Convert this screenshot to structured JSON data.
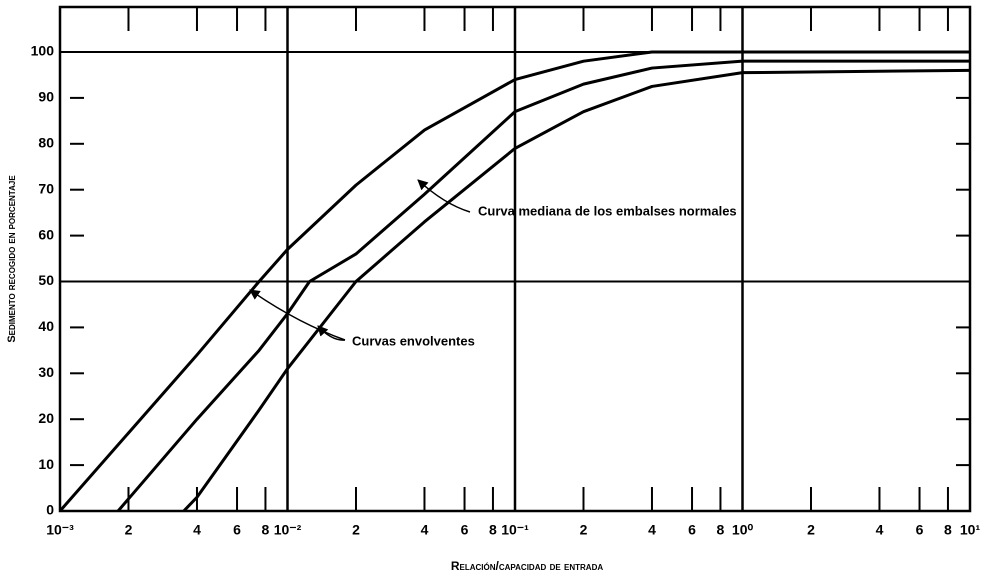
{
  "chart_data": {
    "type": "line",
    "xlabel": "Relación/capacidad de entrada",
    "ylabel": "Sedimento recogido en porcentaje",
    "xscale": "log",
    "xlim": [
      0.001,
      10
    ],
    "ylim": [
      0,
      100
    ],
    "xticks": [
      {
        "value": 0.001,
        "label": "10⁻³"
      },
      {
        "value": 0.002,
        "label": "2"
      },
      {
        "value": 0.004,
        "label": "4"
      },
      {
        "value": 0.006,
        "label": "6"
      },
      {
        "value": 0.008,
        "label": "8"
      },
      {
        "value": 0.01,
        "label": "10⁻²"
      },
      {
        "value": 0.02,
        "label": "2"
      },
      {
        "value": 0.04,
        "label": "4"
      },
      {
        "value": 0.06,
        "label": "6"
      },
      {
        "value": 0.08,
        "label": "8"
      },
      {
        "value": 0.1,
        "label": "10⁻¹"
      },
      {
        "value": 0.2,
        "label": "2"
      },
      {
        "value": 0.4,
        "label": "4"
      },
      {
        "value": 0.6,
        "label": "6"
      },
      {
        "value": 0.8,
        "label": "8"
      },
      {
        "value": 1,
        "label": "10⁰"
      },
      {
        "value": 2,
        "label": "2"
      },
      {
        "value": 4,
        "label": "4"
      },
      {
        "value": 6,
        "label": "6"
      },
      {
        "value": 8,
        "label": "8"
      },
      {
        "value": 10,
        "label": "10¹"
      }
    ],
    "yticks": [
      0,
      10,
      20,
      30,
      40,
      50,
      60,
      70,
      80,
      90,
      100
    ],
    "xgrid": [
      0.01,
      0.1,
      1
    ],
    "ygrid": [
      50,
      100
    ],
    "series": [
      {
        "color": "#000000",
        "x": [
          0.001,
          0.002,
          0.004,
          0.0075,
          0.01,
          0.02,
          0.04,
          0.1,
          0.2,
          0.4,
          1,
          10
        ],
        "values": [
          0,
          17,
          34,
          50,
          57,
          71,
          83,
          94,
          98,
          100,
          100,
          100
        ]
      },
      {
        "color": "#000000",
        "x": [
          0.0018,
          0.004,
          0.0075,
          0.01,
          0.0125,
          0.02,
          0.04,
          0.1,
          0.2,
          0.4,
          1,
          10
        ],
        "values": [
          0,
          20,
          35,
          43,
          50,
          56,
          69,
          87,
          93,
          96.5,
          98,
          98
        ]
      },
      {
        "color": "#000000",
        "x": [
          0.0035,
          0.004,
          0.0075,
          0.01,
          0.02,
          0.04,
          0.1,
          0.2,
          0.4,
          1,
          10
        ],
        "values": [
          0,
          3,
          22,
          31,
          50,
          63,
          79,
          87,
          92.5,
          95.5,
          96
        ]
      }
    ],
    "annotations": [
      "Curva mediana de los embalses normales",
      "Curvas envolventes"
    ]
  }
}
